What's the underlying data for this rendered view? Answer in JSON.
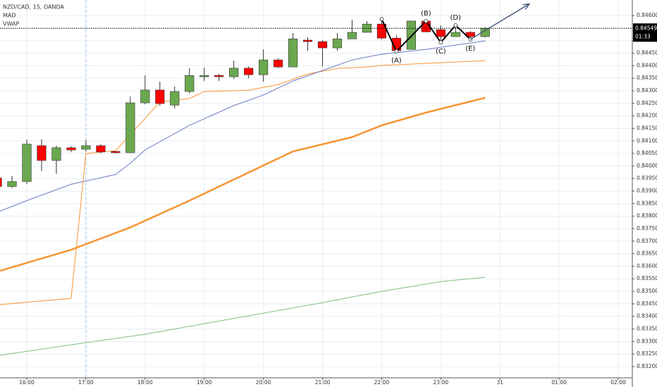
{
  "chart_data": {
    "type": "candlestick",
    "title": "NZD/CAD, 15, OANDA",
    "indicators": [
      "MAD",
      "VWAP"
    ],
    "x": [
      15.5,
      15.75,
      16,
      16.25,
      16.5,
      16.75,
      17,
      17.25,
      17.5,
      17.75,
      18,
      18.25,
      18.5,
      18.75,
      19,
      19.25,
      19.5,
      19.75,
      20,
      20.25,
      20.5,
      20.75,
      21,
      21.25,
      21.5,
      21.75,
      22,
      22.25,
      22.5,
      22.75,
      23,
      23.25,
      23.5,
      23.75
    ],
    "open": [
      0.83952,
      0.83918,
      0.83938,
      0.84081,
      0.84022,
      0.84073,
      0.84067,
      0.84081,
      0.84058,
      0.84053,
      0.84252,
      0.84303,
      0.84243,
      0.84297,
      0.84356,
      0.84361,
      0.84356,
      0.8439,
      0.84364,
      0.84423,
      0.84395,
      0.84502,
      0.84496,
      0.84471,
      0.84507,
      0.84533,
      0.84566,
      0.8451,
      0.84465,
      0.84578,
      0.84544,
      0.84516,
      0.84533,
      0.84516
    ],
    "high": [
      0.83955,
      0.8396,
      0.84106,
      0.84106,
      0.84081,
      0.84078,
      0.84103,
      0.84087,
      0.8406,
      0.84277,
      0.84361,
      0.84336,
      0.84317,
      0.8439,
      0.84392,
      0.84367,
      0.8442,
      0.84397,
      0.84465,
      0.8443,
      0.8453,
      0.84513,
      0.84502,
      0.8453,
      0.84583,
      0.84578,
      0.84586,
      0.84521,
      0.84578,
      0.84583,
      0.84561,
      0.84555,
      0.84538,
      0.84555
    ],
    "low": [
      0.83915,
      0.83912,
      0.83927,
      0.8398,
      0.83969,
      0.84055,
      0.84058,
      0.8405,
      0.8405,
      0.84053,
      0.84246,
      0.8424,
      0.8423,
      0.84289,
      0.84339,
      0.84339,
      0.84347,
      0.8435,
      0.84336,
      0.8439,
      0.84395,
      0.8446,
      0.84398,
      0.8446,
      0.84507,
      0.84533,
      0.84505,
      0.84451,
      0.84465,
      0.84533,
      0.84493,
      0.84516,
      0.84505,
      0.84513
    ],
    "close": [
      0.83918,
      0.83938,
      0.84087,
      0.84022,
      0.84073,
      0.84064,
      0.84081,
      0.84056,
      0.84053,
      0.84252,
      0.84303,
      0.84249,
      0.84297,
      0.84361,
      0.84361,
      0.84356,
      0.8439,
      0.84364,
      0.84423,
      0.84395,
      0.84507,
      0.84496,
      0.84471,
      0.84507,
      0.84533,
      0.84566,
      0.8451,
      0.8446,
      0.84578,
      0.84535,
      0.84516,
      0.84533,
      0.84516,
      0.84549
    ],
    "up_color": "#6aa84f",
    "down_color": "#ff0000",
    "lines": [
      {
        "color": "#f79433",
        "width": 2.5,
        "x": [
          15.55,
          16.75,
          17.75,
          18.75,
          19.5,
          20.5,
          21.5,
          22,
          22.75,
          23.75
        ],
        "values": [
          0.83582,
          0.83666,
          0.83755,
          0.83862,
          0.83946,
          0.84058,
          0.84115,
          0.84162,
          0.84213,
          0.84272
        ]
      },
      {
        "color": "#f79433",
        "width": 1,
        "x": [
          15.55,
          16.75,
          17,
          17.5,
          18,
          18.25,
          18.75,
          19,
          19.75,
          20.25,
          20.75,
          21.25,
          21.75,
          22,
          23,
          23.75
        ],
        "values": [
          0.83447,
          0.83472,
          0.8405,
          0.84061,
          0.8419,
          0.84255,
          0.84269,
          0.84297,
          0.84302,
          0.84325,
          0.84367,
          0.84389,
          0.84395,
          0.84401,
          0.84412,
          0.8442
        ]
      },
      {
        "color": "#6a79c0",
        "width": 1,
        "x": [
          15.55,
          16,
          16.75,
          17.5,
          17.75,
          18,
          18.75,
          19.5,
          20,
          20.5,
          21,
          21.5,
          22,
          22.75,
          23.75
        ],
        "values": [
          0.8382,
          0.83862,
          0.83927,
          0.83966,
          0.84011,
          0.84064,
          0.84162,
          0.84241,
          0.84283,
          0.84339,
          0.84381,
          0.84423,
          0.84446,
          0.84465,
          0.84499
        ]
      },
      {
        "color": "#7fbf7f",
        "width": 1,
        "x": [
          15.55,
          16.75,
          18,
          19,
          20,
          21,
          22,
          23,
          23.75
        ],
        "values": [
          0.83245,
          0.83287,
          0.83329,
          0.83371,
          0.83413,
          0.83455,
          0.835,
          0.83539,
          0.83556
        ]
      }
    ],
    "pattern": {
      "color": "#000000",
      "x": [
        22,
        22.25,
        22.75,
        23,
        23.25,
        23.5
      ],
      "values": [
        0.84586,
        0.84457,
        0.84578,
        0.84493,
        0.84561,
        0.84505
      ]
    },
    "arrow": {
      "color": "#4a5a7a",
      "x": [
        23.5,
        24.486
      ],
      "values": [
        0.84505,
        0.84645
      ]
    },
    "annotations": [
      "(A)",
      "(B)",
      "(C)",
      "(D)",
      "(E)"
    ],
    "last_price": 0.84549,
    "countdown": "01:33",
    "xlim": [
      15.547,
      26.238
    ],
    "ylim": [
      0.83155,
      0.84662
    ],
    "xticks": [
      {
        "value": 16,
        "label": "16:00"
      },
      {
        "value": 17,
        "label": "17:00"
      },
      {
        "value": 18,
        "label": "18:00"
      },
      {
        "value": 19,
        "label": "19:00"
      },
      {
        "value": 20,
        "label": "20:00"
      },
      {
        "value": 21,
        "label": "21:00"
      },
      {
        "value": 22,
        "label": "22:00"
      },
      {
        "value": 23,
        "label": "23:00"
      },
      {
        "value": 24,
        "label": "31"
      },
      {
        "value": 25,
        "label": "01:00"
      },
      {
        "value": 26,
        "label": "02:00"
      }
    ],
    "yticks": [
      {
        "value": 0.832,
        "label": "0.83200"
      },
      {
        "value": 0.8325,
        "label": "0.83250"
      },
      {
        "value": 0.833,
        "label": "0.83300"
      },
      {
        "value": 0.8335,
        "label": "0.83350"
      },
      {
        "value": 0.834,
        "label": "0.83400"
      },
      {
        "value": 0.8345,
        "label": "0.83450"
      },
      {
        "value": 0.835,
        "label": "0.83500"
      },
      {
        "value": 0.8355,
        "label": "0.83550"
      },
      {
        "value": 0.836,
        "label": "0.83600"
      },
      {
        "value": 0.8365,
        "label": "0.83650"
      },
      {
        "value": 0.837,
        "label": "0.83700"
      },
      {
        "value": 0.8375,
        "label": "0.83750"
      },
      {
        "value": 0.838,
        "label": "0.83800"
      },
      {
        "value": 0.8385,
        "label": "0.83850"
      },
      {
        "value": 0.839,
        "label": "0.83900"
      },
      {
        "value": 0.8395,
        "label": "0.83950"
      },
      {
        "value": 0.84,
        "label": "0.84000"
      },
      {
        "value": 0.8405,
        "label": "0.84050"
      },
      {
        "value": 0.841,
        "label": "0.84100"
      },
      {
        "value": 0.8415,
        "label": "0.84150"
      },
      {
        "value": 0.842,
        "label": "0.84200"
      },
      {
        "value": 0.8425,
        "label": "0.84250"
      },
      {
        "value": 0.843,
        "label": "0.84300"
      },
      {
        "value": 0.8435,
        "label": "0.84350"
      },
      {
        "value": 0.844,
        "label": "0.84400"
      },
      {
        "value": 0.8445,
        "label": "0.84450"
      },
      {
        "value": 0.845,
        "label": "0.84500"
      },
      {
        "value": 0.8455,
        "label": "0.84550"
      },
      {
        "value": 0.846,
        "label": "0.84600"
      }
    ],
    "grid": true
  }
}
